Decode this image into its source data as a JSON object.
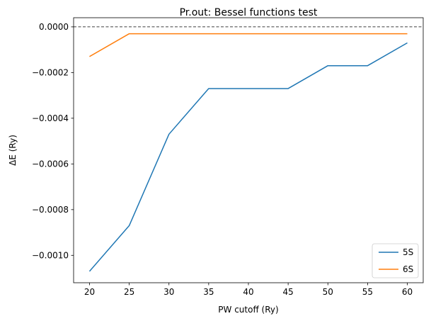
{
  "chart_data": {
    "type": "line",
    "title": "Pr.out: Bessel functions test",
    "xlabel": "PW cutoff (Ry)",
    "ylabel": "ΔE (Ry)",
    "x": [
      20,
      25,
      30,
      35,
      40,
      45,
      50,
      55,
      60
    ],
    "xlim": [
      18,
      62
    ],
    "ylim": [
      -0.00112,
      4e-05
    ],
    "xticks": [
      20,
      25,
      30,
      35,
      40,
      45,
      50,
      55,
      60
    ],
    "xtick_labels": [
      "20",
      "25",
      "30",
      "35",
      "40",
      "45",
      "50",
      "55",
      "60"
    ],
    "yticks": [
      0.0,
      -0.0002,
      -0.0004,
      -0.0006,
      -0.0008,
      -0.001
    ],
    "ytick_labels": [
      "0.0000",
      "−0.0002",
      "−0.0004",
      "−0.0006",
      "−0.0008",
      "−0.0010"
    ],
    "reference_line": {
      "y": 0.0,
      "style": "dashed",
      "color": "#000000"
    },
    "grid": false,
    "legend_position": "lower-right",
    "series": [
      {
        "name": "5S",
        "color": "#1f77b4",
        "values": [
          -0.00107,
          -0.00087,
          -0.00047,
          -0.00027,
          -0.00027,
          -0.00027,
          -0.00017,
          -0.00017,
          -7e-05
        ]
      },
      {
        "name": "6S",
        "color": "#ff7f0e",
        "values": [
          -0.00013,
          -3e-05,
          -3e-05,
          -3e-05,
          -3e-05,
          -3e-05,
          -3e-05,
          -3e-05,
          -3e-05
        ]
      }
    ]
  }
}
